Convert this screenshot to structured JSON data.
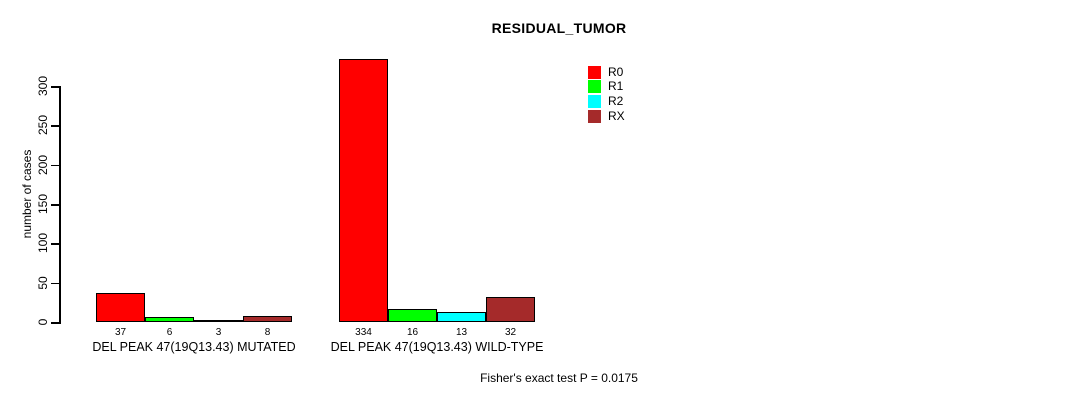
{
  "chart_data": {
    "type": "bar",
    "title": "RESIDUAL_TUMOR",
    "xlabel": "",
    "ylabel": "number of cases",
    "categories": [
      "DEL PEAK 47(19Q13.43) MUTATED",
      "DEL PEAK 47(19Q13.43) WILD-TYPE"
    ],
    "series": [
      {
        "name": "R0",
        "color": "#FF0000",
        "values": [
          37,
          334
        ]
      },
      {
        "name": "R1",
        "color": "#00FF00",
        "values": [
          6,
          16
        ]
      },
      {
        "name": "R2",
        "color": "#00FFFF",
        "values": [
          3,
          13
        ]
      },
      {
        "name": "RX",
        "color": "#A52A2A",
        "values": [
          8,
          32
        ]
      }
    ],
    "yticks": [
      0,
      50,
      100,
      150,
      200,
      250,
      300
    ],
    "ylim": [
      0,
      300
    ],
    "bar_value_labels_shown": true,
    "grid": false,
    "legend_position": "top-right",
    "caption": "Fisher's exact test P = 0.0175"
  }
}
